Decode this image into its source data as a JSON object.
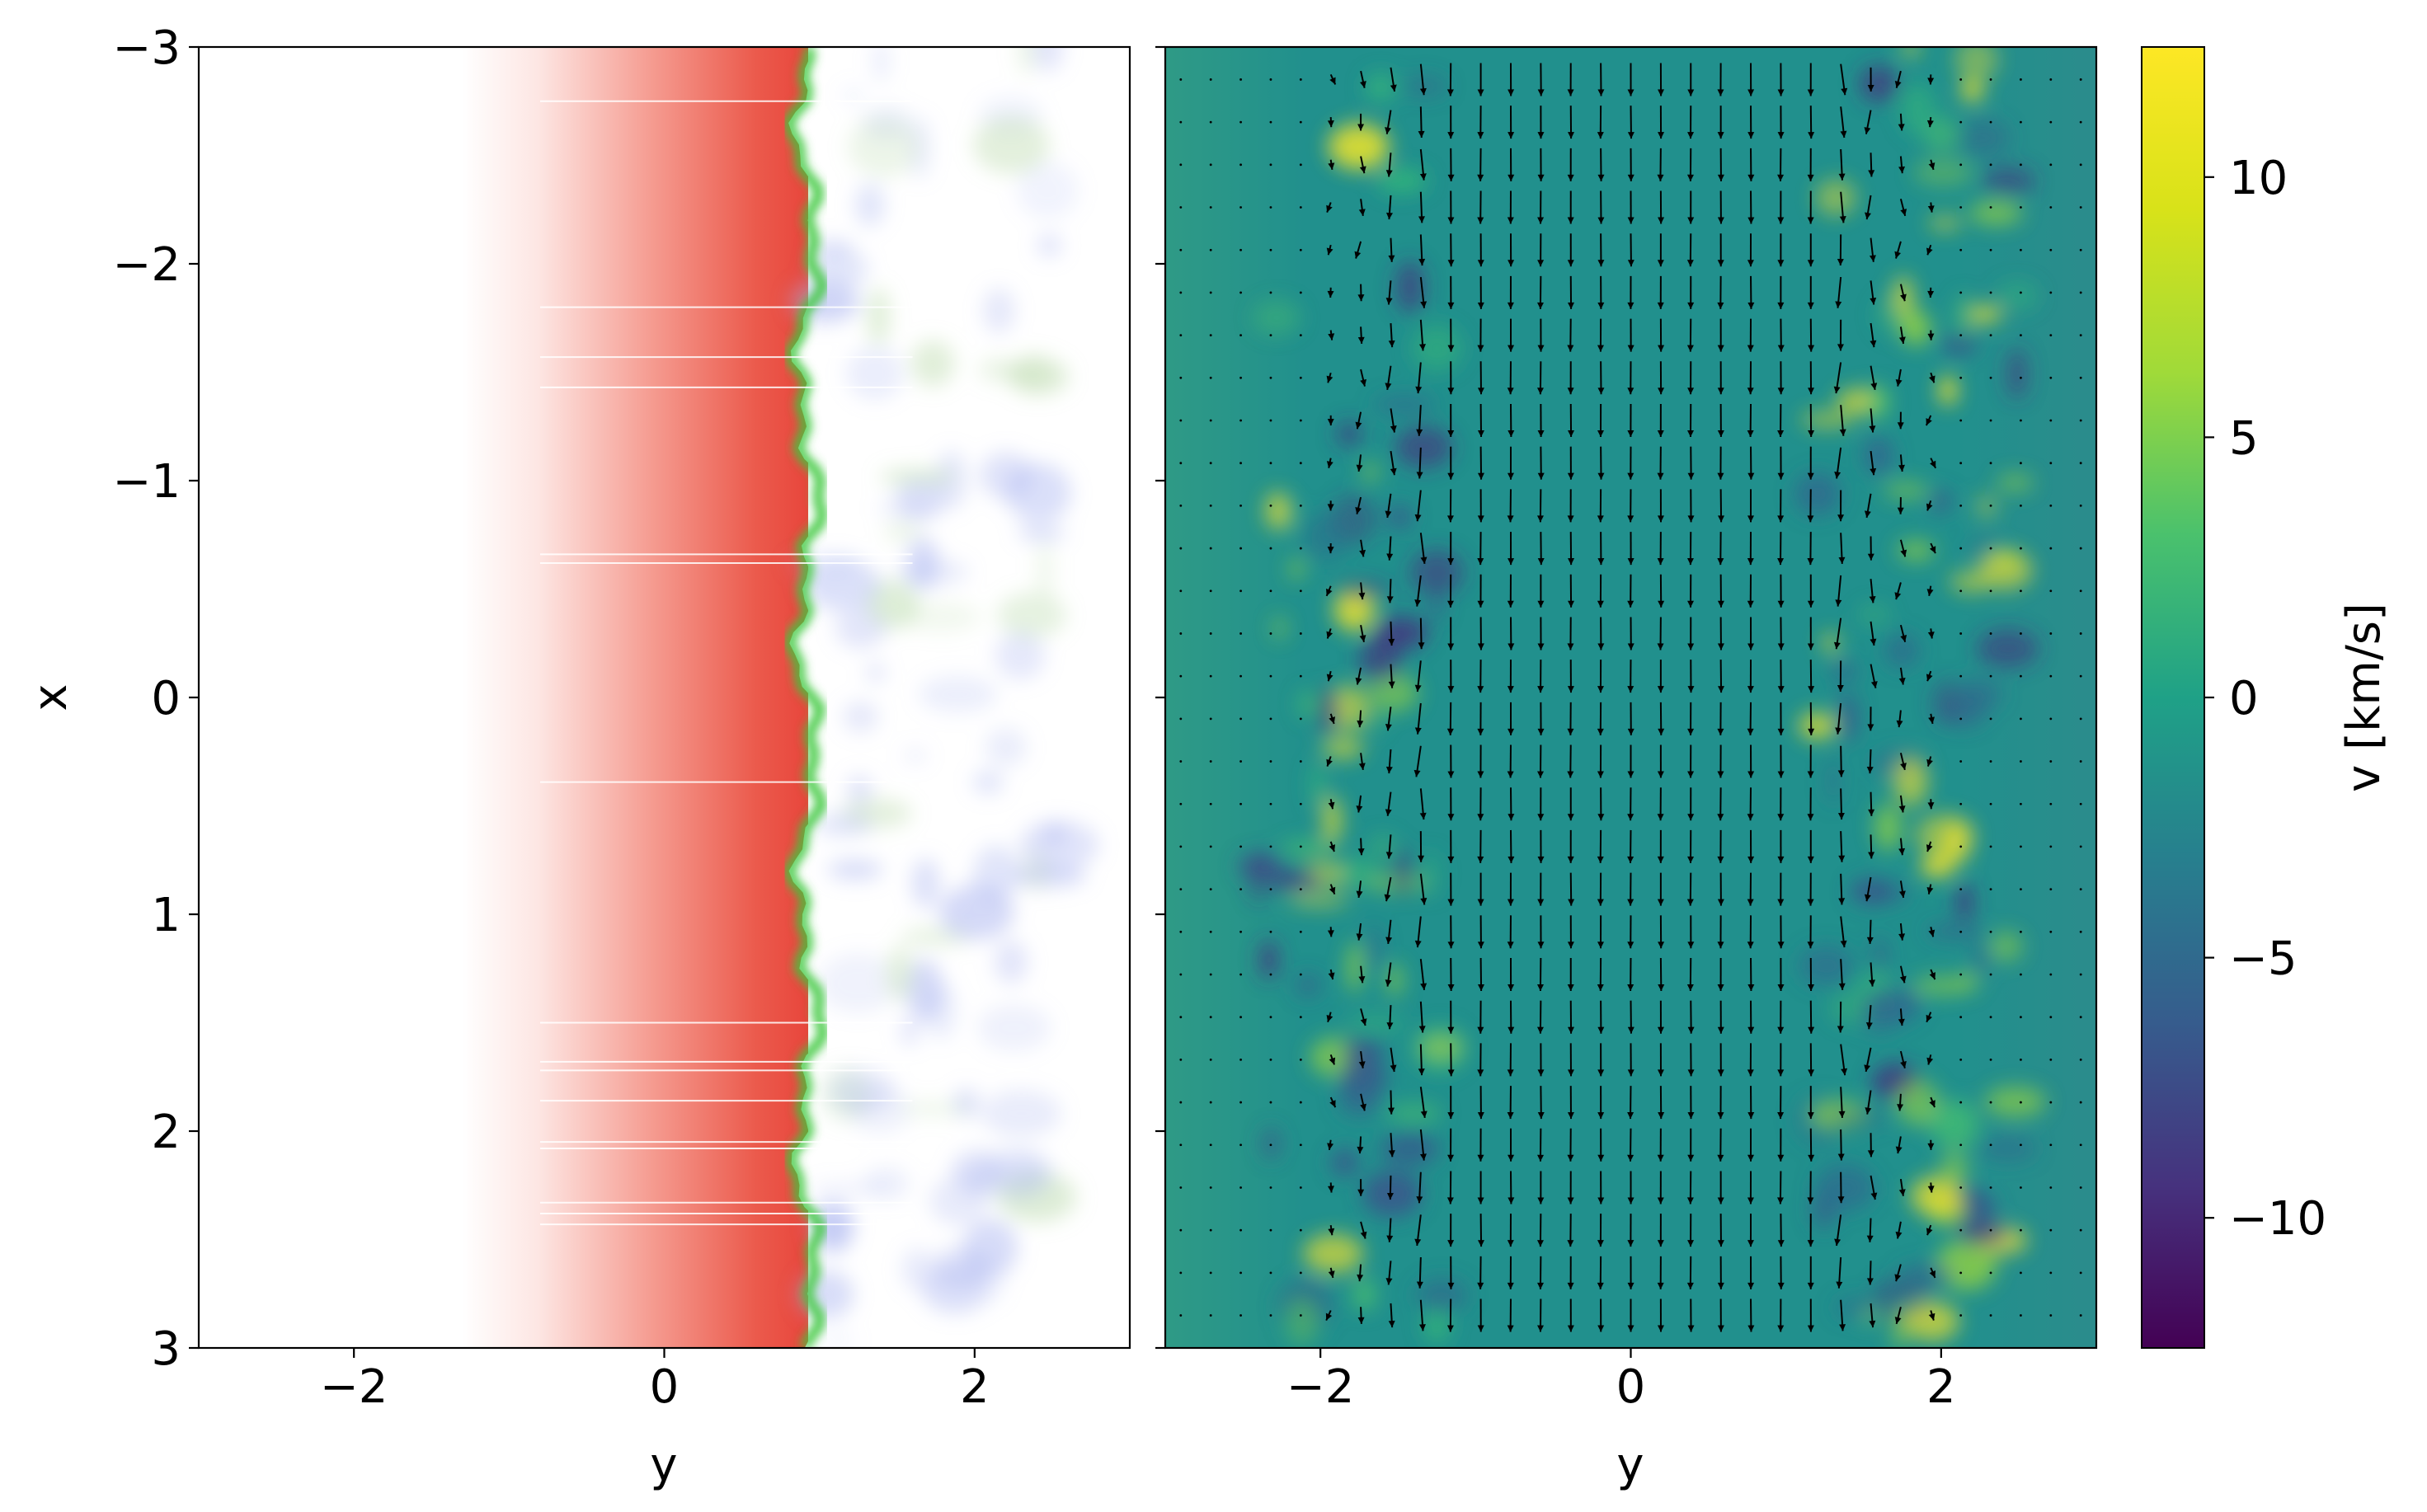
{
  "chart_data": [
    {
      "type": "heatmap",
      "panel": "left",
      "description": "passive scalar / density field",
      "xlabel": "y",
      "ylabel": "x",
      "xlim": [
        -3,
        3
      ],
      "ylim": [
        -3,
        3
      ],
      "y_axis_inverted": true,
      "xticks": [
        -2,
        0,
        2
      ],
      "yticks": [
        -3,
        -2,
        -1,
        0,
        1,
        2,
        3
      ],
      "xtick_labels": [
        "−2",
        "0",
        "2"
      ],
      "ytick_labels": [
        "−3",
        "−2",
        "−1",
        "0",
        "1",
        "2",
        "3"
      ],
      "colors": {
        "dense": "#e8463c",
        "interface": "#3cc83c",
        "ambient": "#9ca8ee",
        "background": "#ffffff"
      }
    },
    {
      "type": "heatmap",
      "panel": "right",
      "description": "velocity field with quiver arrows",
      "xlabel": "y",
      "xlim": [
        -3,
        3
      ],
      "ylim": [
        -3,
        3
      ],
      "y_axis_inverted": true,
      "xticks": [
        -2,
        0,
        2
      ],
      "xtick_labels": [
        "−2",
        "0",
        "2"
      ],
      "colorbar": {
        "label": "v [km/s]",
        "range": [
          -12.5,
          12.5
        ],
        "ticks": [
          10,
          5,
          0,
          -5,
          -10
        ],
        "tick_labels": [
          "10",
          "5",
          "0",
          "−5",
          "−10"
        ],
        "colormap": "viridis"
      }
    }
  ]
}
